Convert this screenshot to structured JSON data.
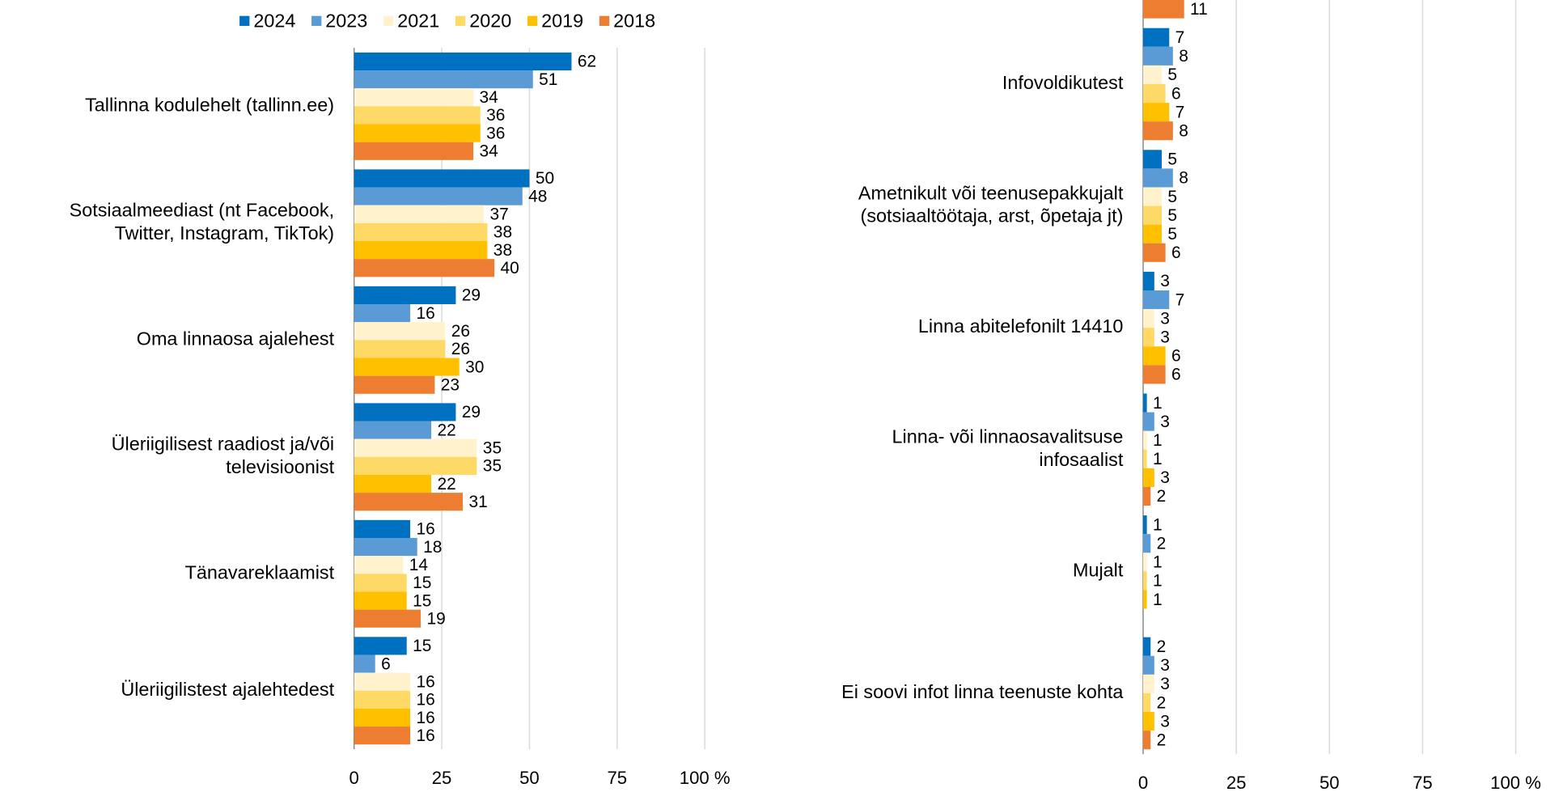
{
  "chart_data": [
    {
      "type": "bar",
      "orientation": "horizontal",
      "categories": [
        "Tallinna kodulehelt (tallinn.ee)",
        "Sotsiaalmeediast (nt Facebook,\nTwitter, Instagram, TikTok)",
        "Oma linnaosa ajalehest",
        "Üleriigilisest raadiost ja/või\ntelevisioonist",
        "Tänavareklaamist",
        "Üleriigilistest ajalehtedest"
      ],
      "series": [
        {
          "name": "2024",
          "color": "#0070c0",
          "values": [
            62,
            50,
            29,
            29,
            16,
            15
          ]
        },
        {
          "name": "2023",
          "color": "#5b9bd5",
          "values": [
            51,
            48,
            16,
            22,
            18,
            6
          ]
        },
        {
          "name": "2021",
          "color": "#fff2cc",
          "values": [
            34,
            37,
            26,
            35,
            14,
            16
          ]
        },
        {
          "name": "2020",
          "color": "#ffd966",
          "values": [
            36,
            38,
            26,
            35,
            15,
            16
          ]
        },
        {
          "name": "2019",
          "color": "#ffc000",
          "values": [
            36,
            38,
            30,
            22,
            15,
            16
          ]
        },
        {
          "name": "2018",
          "color": "#ed7d31",
          "values": [
            34,
            40,
            23,
            31,
            19,
            16
          ]
        }
      ],
      "xlim": [
        0,
        100
      ],
      "xticks": [
        0,
        25,
        50,
        75,
        {
          "value": 100,
          "label": "100 %"
        }
      ],
      "grid": true,
      "legend": "top"
    },
    {
      "type": "bar",
      "orientation": "horizontal",
      "categories": [
        null,
        "Infovoldikutest",
        "Ametnikult või teenusepakkujalt\n(sotsiaaltöötaja, arst, õpetaja jt)",
        "Linna abitelefonilt 14410",
        "Linna- või linnaosavalitsuse\ninfosaalist",
        "Mujalt",
        "Ei soovi infot linna teenuste kohta"
      ],
      "series": [
        {
          "color": "#0070c0",
          "values": [
            null,
            7,
            5,
            3,
            1,
            1,
            2
          ]
        },
        {
          "color": "#5b9bd5",
          "values": [
            null,
            8,
            8,
            7,
            3,
            2,
            3
          ]
        },
        {
          "color": "#fff2cc",
          "values": [
            null,
            5,
            5,
            3,
            1,
            1,
            3
          ]
        },
        {
          "color": "#ffd966",
          "values": [
            null,
            6,
            5,
            3,
            1,
            1,
            2
          ]
        },
        {
          "color": "#ffc000",
          "values": [
            null,
            7,
            5,
            6,
            3,
            1,
            3
          ]
        },
        {
          "color": "#ed7d31",
          "values": [
            11,
            8,
            6,
            6,
            2,
            null,
            2
          ]
        }
      ],
      "xlim": [
        0,
        100
      ],
      "xticks": [
        0,
        25,
        50,
        75,
        {
          "value": 100,
          "label": "100 %"
        }
      ],
      "grid": true
    }
  ]
}
